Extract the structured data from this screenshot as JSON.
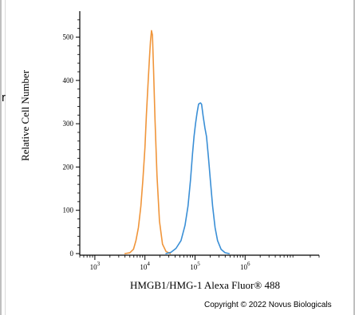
{
  "page": {
    "left_fragment": "r",
    "copyright": "Copyright © 2022 Novus Biologicals"
  },
  "chart_data": {
    "type": "line",
    "xlabel": "HMGB1/HMG-1 Alexa Fluor® 488",
    "ylabel": "Relative Cell Number",
    "x_scale": "log",
    "xlim": [
      500,
      30000000
    ],
    "ylim": [
      0,
      560
    ],
    "x_ticks": [
      {
        "value": 1000,
        "base": "10",
        "exp": "3"
      },
      {
        "value": 10000,
        "base": "10",
        "exp": "4"
      },
      {
        "value": 100000,
        "base": "10",
        "exp": "5"
      },
      {
        "value": 1000000,
        "base": "10",
        "exp": "6"
      }
    ],
    "y_ticks": [
      {
        "value": 0,
        "label": "0"
      },
      {
        "value": 100,
        "label": "100"
      },
      {
        "value": 200,
        "label": "200"
      },
      {
        "value": 300,
        "label": "300"
      },
      {
        "value": 400,
        "label": "400"
      },
      {
        "value": 500,
        "label": "500"
      }
    ],
    "grid": false,
    "series": [
      {
        "color": "#f0953a",
        "x": [
          3980,
          5000,
          5900,
          6600,
          7400,
          8300,
          9100,
          10000,
          10700,
          11500,
          12300,
          12900,
          13500,
          14100,
          14800,
          15900,
          17400,
          19500,
          22400,
          26300,
          32000
        ],
        "y": [
          0,
          2,
          10,
          30,
          60,
          110,
          170,
          245,
          320,
          390,
          450,
          490,
          515,
          505,
          430,
          310,
          180,
          75,
          22,
          5,
          0
        ]
      },
      {
        "color": "#3a8fd6",
        "x": [
          26300,
          33100,
          41700,
          52500,
          63100,
          72400,
          81300,
          89100,
          95500,
          102300,
          109600,
          117500,
          123000,
          129000,
          135000,
          145000,
          158000,
          170000,
          186000,
          204000,
          224000,
          251000,
          282000,
          331000,
          398000,
          479000
        ],
        "y": [
          0,
          3,
          12,
          30,
          65,
          110,
          170,
          230,
          270,
          300,
          325,
          345,
          347,
          348,
          345,
          318,
          290,
          270,
          220,
          165,
          110,
          60,
          30,
          10,
          2,
          0
        ]
      }
    ]
  }
}
